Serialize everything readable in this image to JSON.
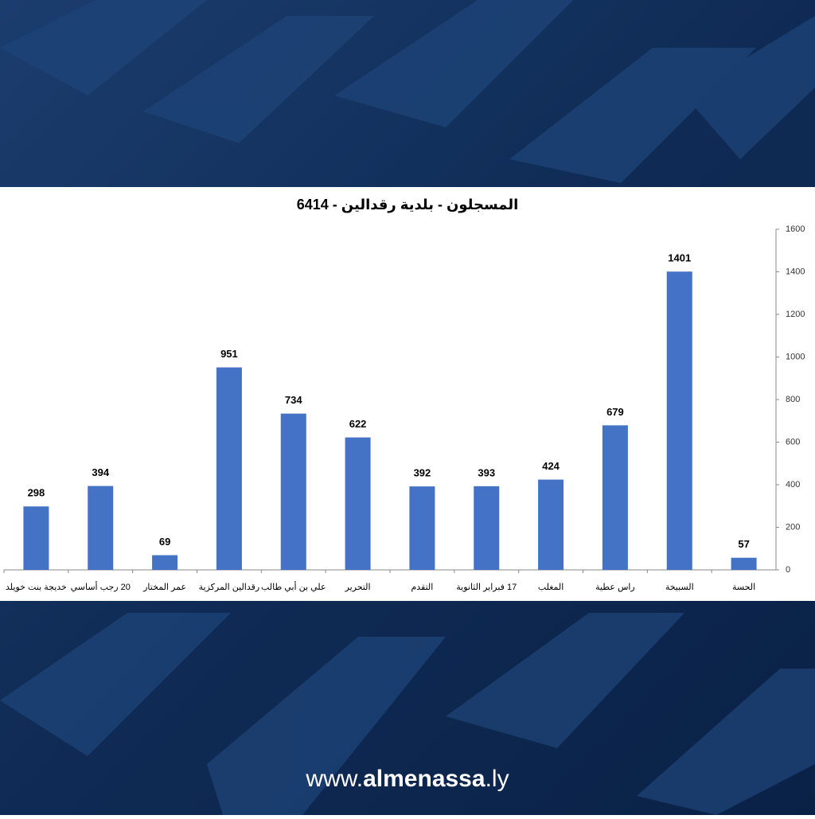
{
  "chart_data": {
    "type": "bar",
    "title": "المسجلون - بلدية رقدالين - 6414",
    "categories": [
      "خديجة بنت خويلد",
      "20 رجب أساسي",
      "عمر المختار",
      "رقدالين المركزية",
      "علي بن أبي طالب",
      "التحرير",
      "التقدم",
      "17 فبراير الثانوية",
      "المغلب",
      "راس عطية",
      "السبيخة",
      "الحسة"
    ],
    "values": [
      298,
      394,
      69,
      951,
      734,
      622,
      392,
      393,
      424,
      679,
      1401,
      57
    ],
    "color": "#4472c4",
    "ylim": [
      0,
      1600
    ],
    "yticks": [
      0,
      200,
      400,
      600,
      800,
      1000,
      1200,
      1400,
      1600
    ],
    "y_axis_side": "right",
    "grid": false
  },
  "footer": {
    "prefix": "www.",
    "brand": "almenassa",
    "suffix": ".ly"
  }
}
